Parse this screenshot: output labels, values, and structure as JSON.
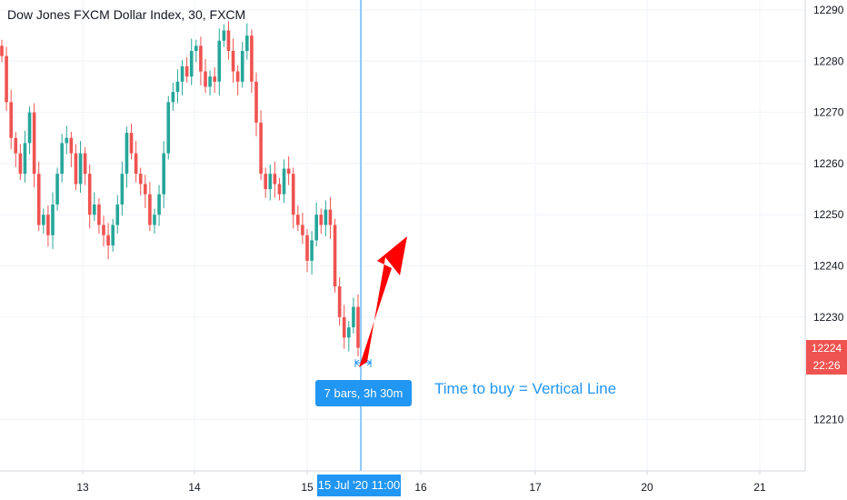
{
  "title": "Dow Jones FXCM Dollar Index, 30, FXCM",
  "colors": {
    "up": "#26a69a",
    "down": "#ef5350",
    "line": "#2196f3",
    "arrow": "#ff0000",
    "grid": "#f0f3fa"
  },
  "price_axis": {
    "ticks": [
      "12290",
      "12280",
      "12270",
      "12260",
      "12250",
      "12240",
      "12230",
      "12210"
    ],
    "last_price": "12224",
    "countdown": "22:26"
  },
  "time_axis": {
    "ticks": [
      "13",
      "14",
      "15",
      "16",
      "17",
      "20",
      "21"
    ],
    "cursor_label": "15 Jul '20   11:00"
  },
  "measure_label": "7 bars, 3h 30m",
  "annotation": "Time to buy = Vertical Line",
  "chart_data": {
    "type": "candlestick",
    "title": "Dow Jones FXCM Dollar Index, 30, FXCM",
    "ylim": [
      12200,
      12292
    ],
    "x_ticks": [
      "13",
      "14",
      "15",
      "16",
      "17",
      "20",
      "21"
    ],
    "y_ticks": [
      12210,
      12230,
      12240,
      12250,
      12260,
      12270,
      12280,
      12290
    ],
    "last_price": 12224,
    "grid": true,
    "close_path": [
      12281,
      12272,
      12265,
      12262,
      12258,
      12264,
      12270,
      12258,
      12248,
      12250,
      12246,
      12252,
      12258,
      12264,
      12265,
      12262,
      12256,
      12262,
      12258,
      12250,
      12252,
      12248,
      12246,
      12244,
      12248,
      12252,
      12258,
      12266,
      12262,
      12258,
      12256,
      12254,
      12248,
      12250,
      12254,
      12262,
      12272,
      12274,
      12276,
      12279,
      12277,
      12282,
      12283,
      12278,
      12275,
      12277,
      12276,
      12284,
      12286,
      12282,
      12278,
      12276,
      12282,
      12285,
      12276,
      12268,
      12258,
      12255,
      12258,
      12256,
      12254,
      12259,
      12258,
      12250,
      12248,
      12246,
      12241,
      12245,
      12250,
      12248,
      12251,
      12248,
      12236,
      12230,
      12226,
      12228,
      12232,
      12224
    ]
  }
}
